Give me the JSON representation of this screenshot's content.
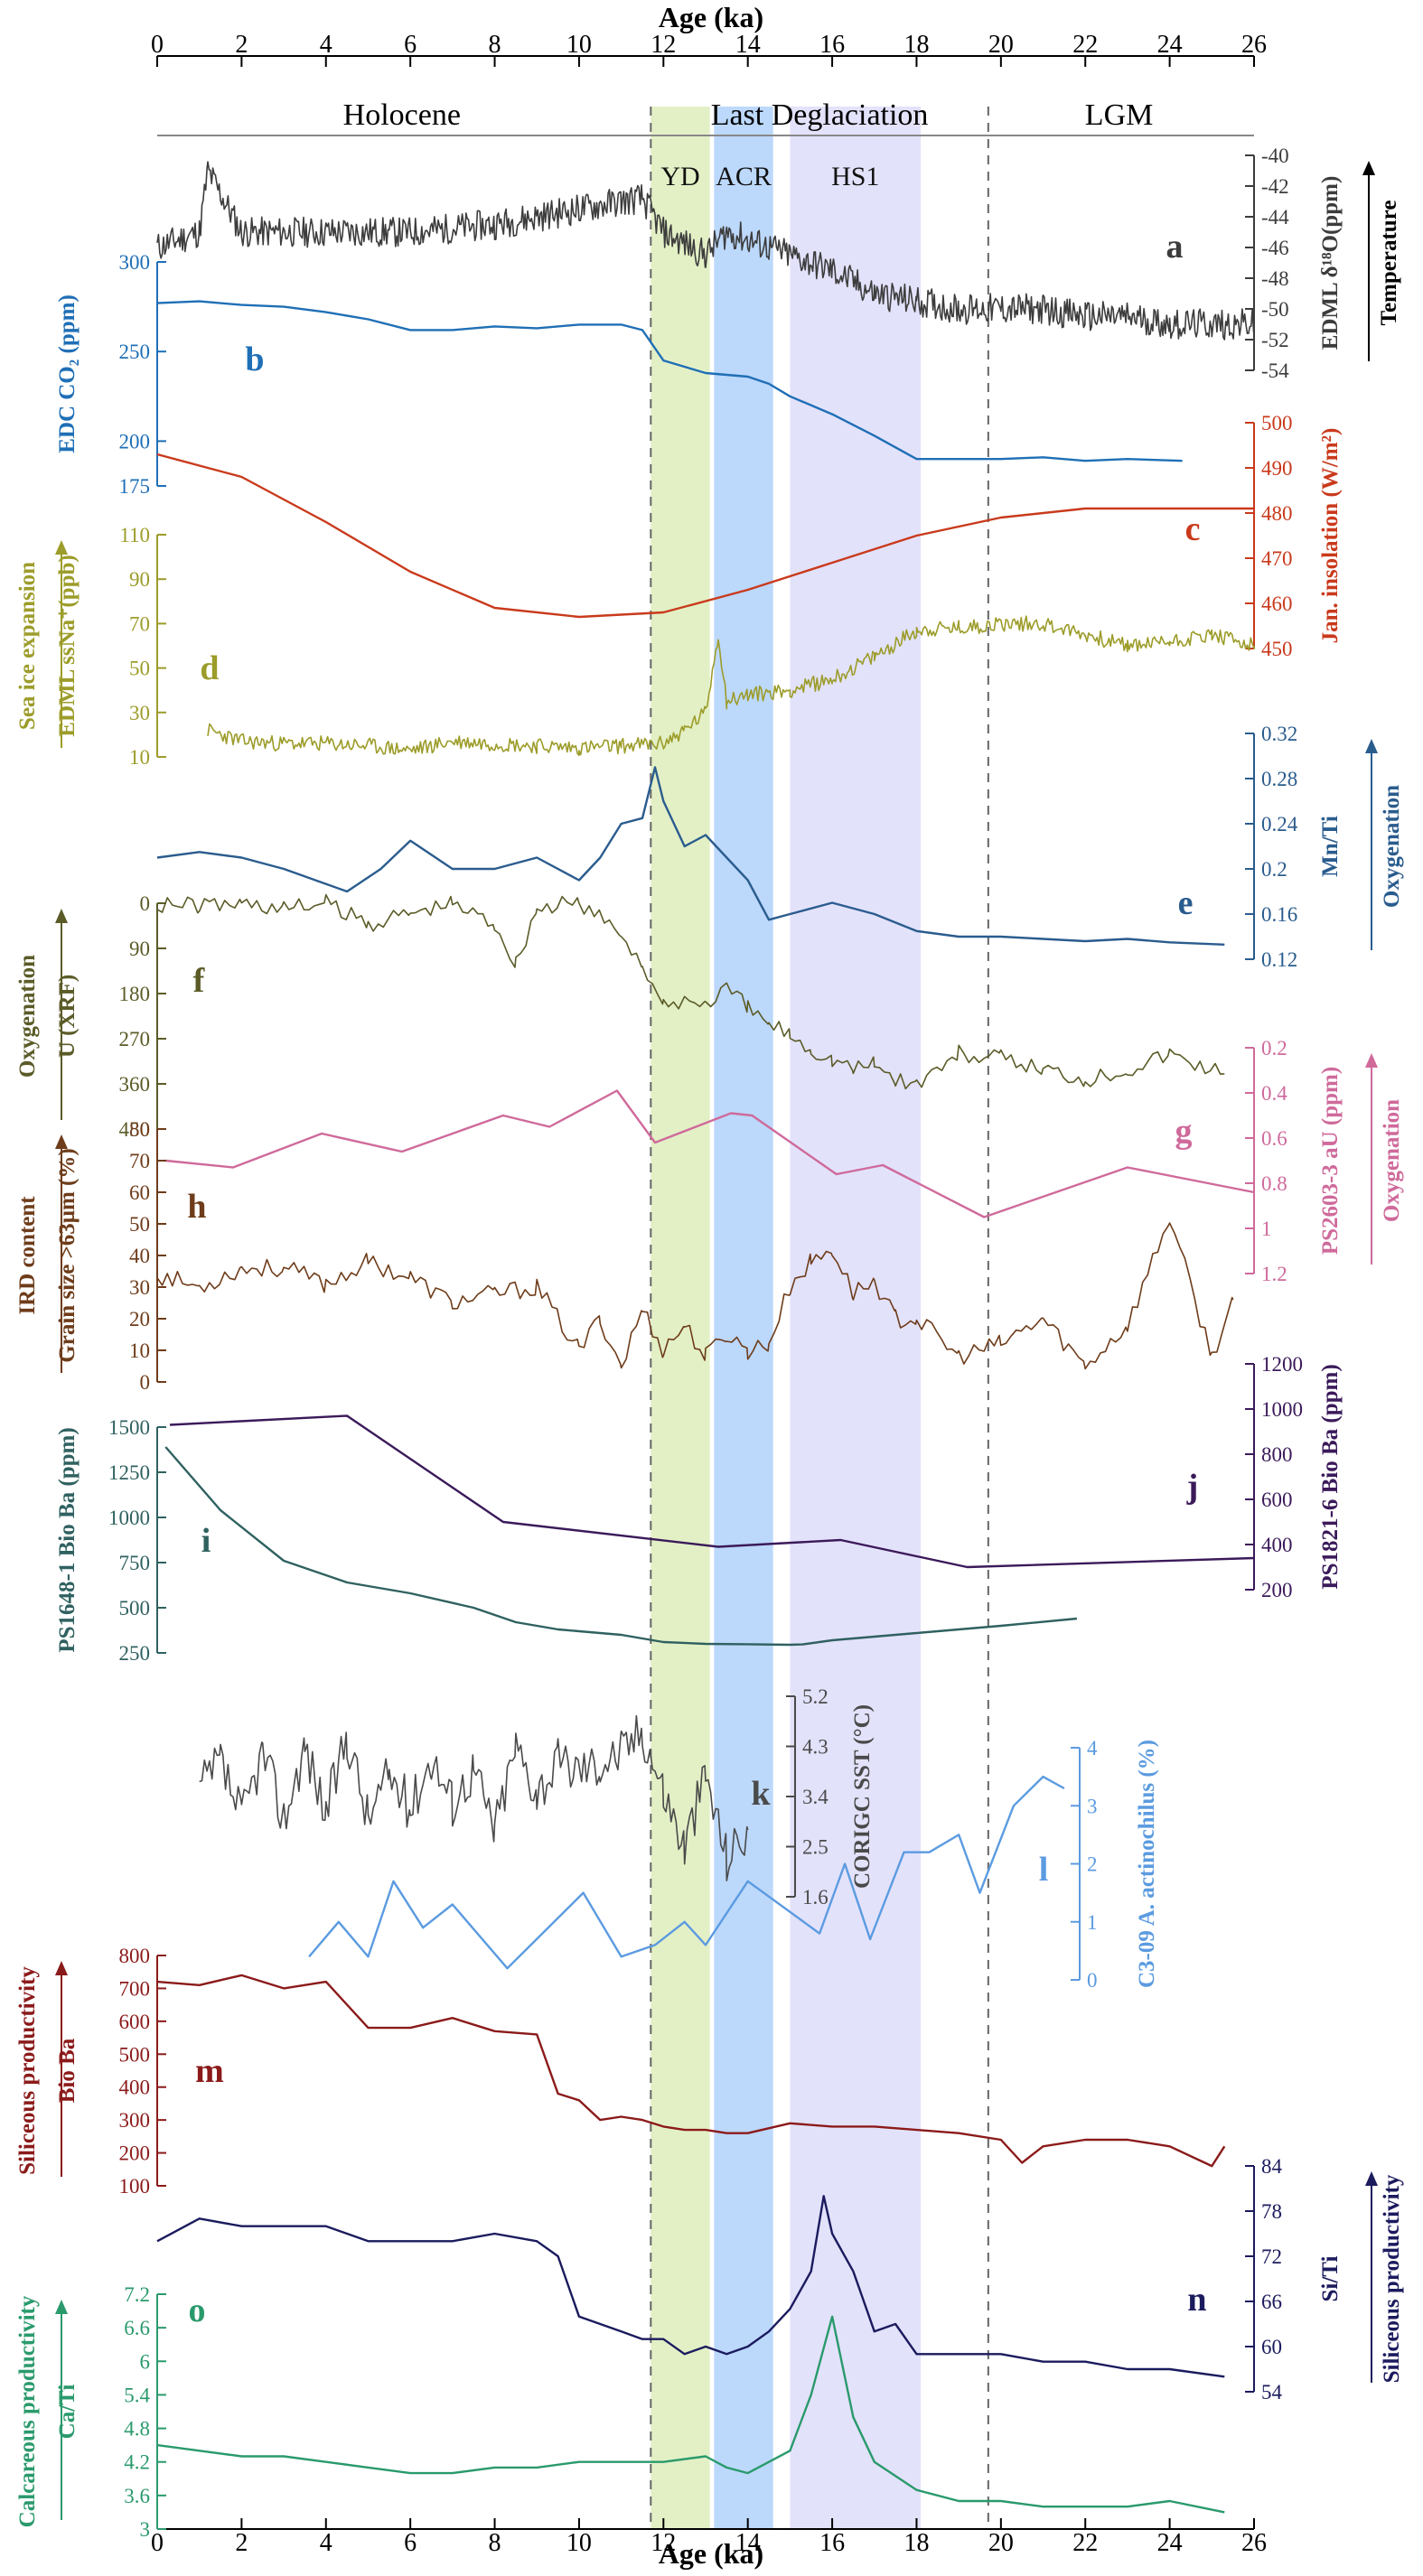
{
  "figure": {
    "top_axis_title": "Age (ka)",
    "bottom_axis_title": "Age (ka)",
    "age_ticks": [
      0,
      2,
      4,
      6,
      8,
      10,
      12,
      14,
      16,
      18,
      20,
      22,
      24,
      26
    ],
    "periods": [
      {
        "label": "Holocene",
        "center": 5.8
      },
      {
        "label": "Last Deglaciation",
        "center": 15.7
      },
      {
        "label": "LGM",
        "center": 22.8
      }
    ],
    "bands": [
      {
        "label": "YD",
        "from": 11.7,
        "to": 13.1,
        "color": "#e3f0c6"
      },
      {
        "label": "ACR",
        "from": 13.2,
        "to": 14.6,
        "color": "#bcd8fb"
      },
      {
        "label": "HS1",
        "from": 15.0,
        "to": 18.1,
        "color": "#e3e2fb"
      }
    ],
    "dashed_lines": [
      11.7,
      19.7
    ]
  },
  "chart_data": [
    {
      "id": "a",
      "type": "line",
      "panel_letter": "a",
      "ylabel": "EDML δ¹⁸O(ppm)",
      "side": "right",
      "color": "#3c3c3c",
      "ylim": [
        -54,
        -40
      ],
      "ticks": [
        -40,
        -42,
        -44,
        -46,
        -48,
        -50,
        -52,
        -54
      ],
      "inverted": false,
      "range_note": "Temperature",
      "arrow_color": "#000000",
      "x": [
        0,
        1,
        1.2,
        2,
        4,
        6,
        8,
        10,
        11,
        11.5,
        12,
        13,
        13.5,
        14,
        14.5,
        15,
        16,
        17,
        18,
        19,
        20,
        21,
        22,
        23,
        24,
        25,
        26
      ],
      "y": [
        -46,
        -45,
        -41,
        -45,
        -45,
        -45,
        -44.5,
        -43.5,
        -43,
        -42.8,
        -45,
        -46.5,
        -45,
        -45.5,
        -46,
        -46.5,
        -47.5,
        -49,
        -49.5,
        -50,
        -50,
        -50,
        -50.5,
        -50.5,
        -51,
        -51,
        -51
      ]
    },
    {
      "id": "b",
      "type": "line",
      "panel_letter": "b",
      "ylabel": "EDC CO₂ (ppm)",
      "side": "left",
      "color": "#1f6fb6",
      "ylim": [
        175,
        300
      ],
      "ticks": [
        175,
        200,
        250,
        300
      ],
      "x": [
        0,
        1,
        2,
        3,
        4,
        5,
        6,
        7,
        8,
        9,
        10,
        11,
        11.5,
        12,
        13,
        14,
        14.5,
        15,
        16,
        17,
        18,
        19,
        20,
        21,
        22,
        23,
        24.3
      ],
      "y": [
        277,
        278,
        276,
        275,
        272,
        268,
        262,
        262,
        264,
        263,
        265,
        265,
        262,
        245,
        238,
        236,
        232,
        225,
        215,
        203,
        190,
        190,
        190,
        191,
        189,
        190,
        189
      ]
    },
    {
      "id": "c",
      "type": "line",
      "panel_letter": "c",
      "ylabel": "Jan. insolation (W/m²)",
      "side": "right",
      "color": "#c93a1c",
      "ylim": [
        450,
        500
      ],
      "ticks": [
        450,
        460,
        470,
        480,
        490,
        500
      ],
      "x": [
        0,
        2,
        4,
        6,
        8,
        10,
        12,
        14,
        16,
        18,
        20,
        22,
        24,
        26
      ],
      "y": [
        493,
        488,
        478,
        467,
        459,
        457,
        458,
        463,
        469,
        475,
        479,
        481,
        481,
        481
      ]
    },
    {
      "id": "d",
      "type": "line",
      "panel_letter": "d",
      "ylabel": "EDML ssNa⁺(ppb)",
      "side": "left",
      "color": "#9c9c2a",
      "ylim": [
        10,
        110
      ],
      "ticks": [
        10,
        30,
        50,
        70,
        90,
        110
      ],
      "range_note": "Sea ice expansion",
      "arrow_color": "#9c9c2a",
      "x": [
        1.2,
        2,
        3,
        4,
        5,
        6,
        7,
        8,
        9,
        10,
        11,
        12,
        12.5,
        13,
        13.3,
        13.5,
        14,
        15,
        16,
        17,
        18,
        19,
        20,
        21,
        22,
        23,
        24,
        25,
        26
      ],
      "y": [
        22,
        17,
        16,
        16,
        15,
        13,
        17,
        16,
        15,
        14,
        15,
        16,
        22,
        30,
        65,
        35,
        38,
        40,
        45,
        55,
        67,
        68,
        70,
        70,
        65,
        60,
        62,
        65,
        60
      ]
    },
    {
      "id": "e",
      "type": "line",
      "panel_letter": "e",
      "ylabel": "Mn/Ti",
      "side": "right",
      "color": "#2a5c8e",
      "ylim": [
        0.12,
        0.32
      ],
      "ticks": [
        0.12,
        0.16,
        0.2,
        0.24,
        0.28,
        0.32
      ],
      "range_note": "Oxygenation",
      "arrow_color": "#2a5c8e",
      "x": [
        0,
        1,
        2,
        3,
        4.5,
        5.3,
        6,
        7,
        8,
        9,
        10,
        10.5,
        11,
        11.5,
        11.8,
        12,
        12.5,
        13,
        13.5,
        14,
        14.5,
        15,
        16,
        17,
        18,
        19,
        20,
        21,
        22,
        23,
        24,
        25.3
      ],
      "y": [
        0.21,
        0.215,
        0.21,
        0.2,
        0.18,
        0.2,
        0.225,
        0.2,
        0.2,
        0.21,
        0.19,
        0.21,
        0.24,
        0.245,
        0.29,
        0.26,
        0.22,
        0.23,
        0.21,
        0.19,
        0.155,
        0.16,
        0.17,
        0.16,
        0.145,
        0.14,
        0.14,
        0.138,
        0.136,
        0.138,
        0.135,
        0.133
      ]
    },
    {
      "id": "f",
      "type": "line",
      "panel_letter": "f",
      "ylabel": "U (XRF)",
      "side": "left",
      "color": "#5b5b28",
      "ylim": [
        0,
        450
      ],
      "ticks": [
        0,
        90,
        180,
        270,
        360,
        450
      ],
      "inverted": true,
      "range_note": "Oxygenation",
      "arrow_color": "#5b5b28",
      "x": [
        0,
        1,
        2,
        3,
        4,
        5,
        6,
        7,
        8,
        8.5,
        9,
        10,
        11,
        11.5,
        12,
        12.5,
        13,
        13.5,
        14,
        14.5,
        15,
        15.5,
        16,
        16.5,
        17,
        17.5,
        18,
        19,
        20,
        21,
        22,
        23,
        24,
        25.3
      ],
      "y": [
        0,
        5,
        0,
        10,
        0,
        40,
        20,
        0,
        40,
        120,
        10,
        0,
        60,
        120,
        210,
        190,
        200,
        170,
        210,
        240,
        260,
        290,
        310,
        330,
        320,
        350,
        360,
        300,
        310,
        330,
        350,
        330,
        300,
        340
      ]
    },
    {
      "id": "g",
      "type": "line",
      "panel_letter": "g",
      "ylabel": "PS2603-3 aU (ppm)",
      "side": "right",
      "color": "#cf6a9b",
      "ylim": [
        0.2,
        1.2
      ],
      "ticks": [
        0.2,
        0.4,
        0.6,
        0.8,
        1,
        1.2
      ],
      "inverted": true,
      "range_note": "Oxygenation",
      "arrow_color": "#cf6a9b",
      "x": [
        0.2,
        1.8,
        3.9,
        5.8,
        8.2,
        9.3,
        10.9,
        11.8,
        13.6,
        14.1,
        16.1,
        17.2,
        19.6,
        23,
        26
      ],
      "y": [
        0.7,
        0.73,
        0.58,
        0.66,
        0.5,
        0.55,
        0.39,
        0.62,
        0.49,
        0.5,
        0.76,
        0.72,
        0.95,
        0.73,
        0.84
      ]
    },
    {
      "id": "h",
      "type": "line",
      "panel_letter": "h",
      "ylabel": "Grain size >63μm (%)",
      "side": "left",
      "color": "#6e3c1a",
      "ylim": [
        0,
        80
      ],
      "ticks": [
        0,
        10,
        20,
        30,
        40,
        50,
        60,
        70,
        80
      ],
      "range_note": "IRD content",
      "arrow_color": "#6e3c1a",
      "x": [
        0,
        1,
        2,
        3,
        4,
        5,
        6,
        7,
        8,
        9,
        10,
        10.5,
        11,
        11.5,
        12,
        12.5,
        13,
        13.5,
        14,
        14.5,
        15,
        15.5,
        16,
        16.5,
        17,
        17.5,
        18,
        19,
        20,
        21,
        22,
        23,
        24,
        25,
        25.5
      ],
      "y": [
        34,
        30,
        36,
        36,
        31,
        38,
        33,
        25,
        28,
        30,
        10,
        20,
        5,
        23,
        10,
        18,
        8,
        15,
        10,
        12,
        30,
        38,
        42,
        28,
        32,
        20,
        20,
        8,
        12,
        20,
        5,
        18,
        52,
        8,
        26
      ]
    },
    {
      "id": "i",
      "type": "line",
      "panel_letter": "i",
      "ylabel": "PS1648-1 Bio Ba (ppm)",
      "side": "left",
      "color": "#2f6160",
      "ylim": [
        250,
        1500
      ],
      "ticks": [
        250,
        500,
        750,
        1000,
        1250,
        1500
      ],
      "x": [
        0.2,
        1.5,
        3,
        4.5,
        6,
        7.5,
        8.5,
        9.5,
        11,
        12,
        13,
        14,
        15,
        15.3,
        16,
        18,
        20,
        21.8
      ],
      "y": [
        1390,
        1040,
        760,
        640,
        580,
        500,
        420,
        380,
        350,
        310,
        300,
        298,
        295,
        297,
        320,
        360,
        400,
        440
      ]
    },
    {
      "id": "j",
      "type": "line",
      "panel_letter": "j",
      "ylabel": "PS1821-6 Bio Ba (ppm)",
      "side": "right",
      "color": "#3b1a5a",
      "ylim": [
        200,
        1200
      ],
      "ticks": [
        200,
        400,
        600,
        800,
        1000,
        1200
      ],
      "x": [
        0.3,
        4.5,
        8.2,
        13.3,
        16.2,
        19.2,
        26
      ],
      "y": [
        930,
        970,
        500,
        390,
        420,
        300,
        340
      ]
    },
    {
      "id": "k",
      "type": "line",
      "panel_letter": "k",
      "ylabel": "CORIGC SST (°C)",
      "side": "right",
      "color": "#4a4a4a",
      "ylim": [
        1.6,
        5.2
      ],
      "ticks": [
        1.6,
        2.5,
        3.4,
        4.3,
        5.2
      ],
      "x": [
        1,
        1.5,
        2,
        2.5,
        3,
        3.5,
        4,
        4.5,
        5,
        5.5,
        6,
        6.5,
        7,
        7.5,
        8,
        8.5,
        9,
        9.5,
        10,
        10.5,
        11,
        11.5,
        12,
        12.5,
        13,
        13.5,
        14
      ],
      "y": [
        3.5,
        4.0,
        3.0,
        4.2,
        3.0,
        4.3,
        3.1,
        4.5,
        3.0,
        3.8,
        3.2,
        4.1,
        3.3,
        3.9,
        2.8,
        4.3,
        3.5,
        4.0,
        3.9,
        4.0,
        4.2,
        4.6,
        3.5,
        2.5,
        3.8,
        2.3,
        2.8
      ]
    },
    {
      "id": "l",
      "type": "line",
      "panel_letter": "l",
      "ylabel": "C3-09 A. actinochilus (%)",
      "side": "right",
      "color": "#5b9be0",
      "ylim": [
        0,
        4
      ],
      "ticks": [
        0,
        1,
        2,
        3,
        4
      ],
      "x": [
        3.6,
        4.3,
        5,
        5.6,
        6.3,
        7,
        8.3,
        10.1,
        11,
        11.8,
        12.5,
        13,
        14,
        15.7,
        16.3,
        16.9,
        17.7,
        18.3,
        19,
        19.5,
        20.3,
        21,
        21.5
      ],
      "y": [
        0.4,
        1.0,
        0.4,
        1.7,
        0.9,
        1.3,
        0.2,
        1.5,
        0.4,
        0.6,
        1.0,
        0.6,
        1.7,
        0.8,
        2.0,
        0.7,
        2.2,
        2.2,
        2.5,
        1.5,
        3.0,
        3.5,
        3.3
      ]
    },
    {
      "id": "m",
      "type": "line",
      "panel_letter": "m",
      "ylabel": "Bio Ba",
      "side": "left",
      "color": "#8b1a1a",
      "ylim": [
        100,
        800
      ],
      "ticks": [
        100,
        200,
        300,
        400,
        500,
        600,
        700,
        800
      ],
      "range_note": "Siliceous productivity",
      "arrow_color": "#8b1a1a",
      "x": [
        0,
        1,
        2,
        3,
        4,
        5,
        6,
        7,
        8,
        9,
        9.5,
        10,
        10.5,
        11,
        11.5,
        12,
        12.5,
        13,
        13.5,
        14,
        15,
        16,
        17,
        18,
        19,
        20,
        20.5,
        21,
        22,
        23,
        24,
        25,
        25.3
      ],
      "y": [
        720,
        710,
        740,
        700,
        720,
        580,
        580,
        610,
        570,
        560,
        380,
        360,
        300,
        310,
        300,
        280,
        270,
        270,
        260,
        260,
        290,
        280,
        280,
        270,
        260,
        240,
        170,
        220,
        240,
        240,
        220,
        160,
        220
      ]
    },
    {
      "id": "n",
      "type": "line",
      "panel_letter": "n",
      "ylabel": "Si/Ti",
      "side": "right",
      "color": "#1b1b5e",
      "ylim": [
        54,
        84
      ],
      "ticks": [
        54,
        60,
        66,
        72,
        78,
        84
      ],
      "range_note": "Siliceous productivity",
      "arrow_color": "#1b1b5e",
      "x": [
        0,
        1,
        2,
        3,
        4,
        5,
        6,
        7,
        8,
        9,
        9.5,
        10,
        10.5,
        11,
        11.5,
        12,
        12.5,
        13,
        13.5,
        14,
        14.5,
        15,
        15.5,
        15.8,
        16,
        16.5,
        17,
        17.5,
        18,
        19,
        20,
        21,
        22,
        23,
        24,
        25.3
      ],
      "y": [
        74,
        77,
        76,
        76,
        76,
        74,
        74,
        74,
        75,
        74,
        72,
        64,
        63,
        62,
        61,
        61,
        59,
        60,
        59,
        60,
        62,
        65,
        70,
        80,
        75,
        70,
        62,
        63,
        59,
        59,
        59,
        58,
        58,
        57,
        57,
        56
      ]
    },
    {
      "id": "o",
      "type": "line",
      "panel_letter": "o",
      "ylabel": "Ca/Ti",
      "side": "left",
      "color": "#2a9a6c",
      "ylim": [
        3,
        7.2
      ],
      "ticks": [
        3,
        3.6,
        4.2,
        4.8,
        5.4,
        6,
        6.6,
        7.2
      ],
      "range_note": "Calcareous productivity",
      "arrow_color": "#2a9a6c",
      "x": [
        0,
        1,
        2,
        3,
        4,
        5,
        6,
        7,
        8,
        9,
        10,
        11,
        12,
        13,
        13.5,
        14,
        15,
        15.5,
        16,
        16.5,
        17,
        18,
        19,
        20,
        21,
        22,
        23,
        24,
        25.3
      ],
      "y": [
        4.5,
        4.4,
        4.3,
        4.3,
        4.2,
        4.1,
        4.0,
        4.0,
        4.1,
        4.1,
        4.2,
        4.2,
        4.2,
        4.3,
        4.1,
        4.0,
        4.4,
        5.4,
        6.8,
        5.0,
        4.2,
        3.7,
        3.5,
        3.5,
        3.4,
        3.4,
        3.4,
        3.5,
        3.3
      ]
    }
  ]
}
